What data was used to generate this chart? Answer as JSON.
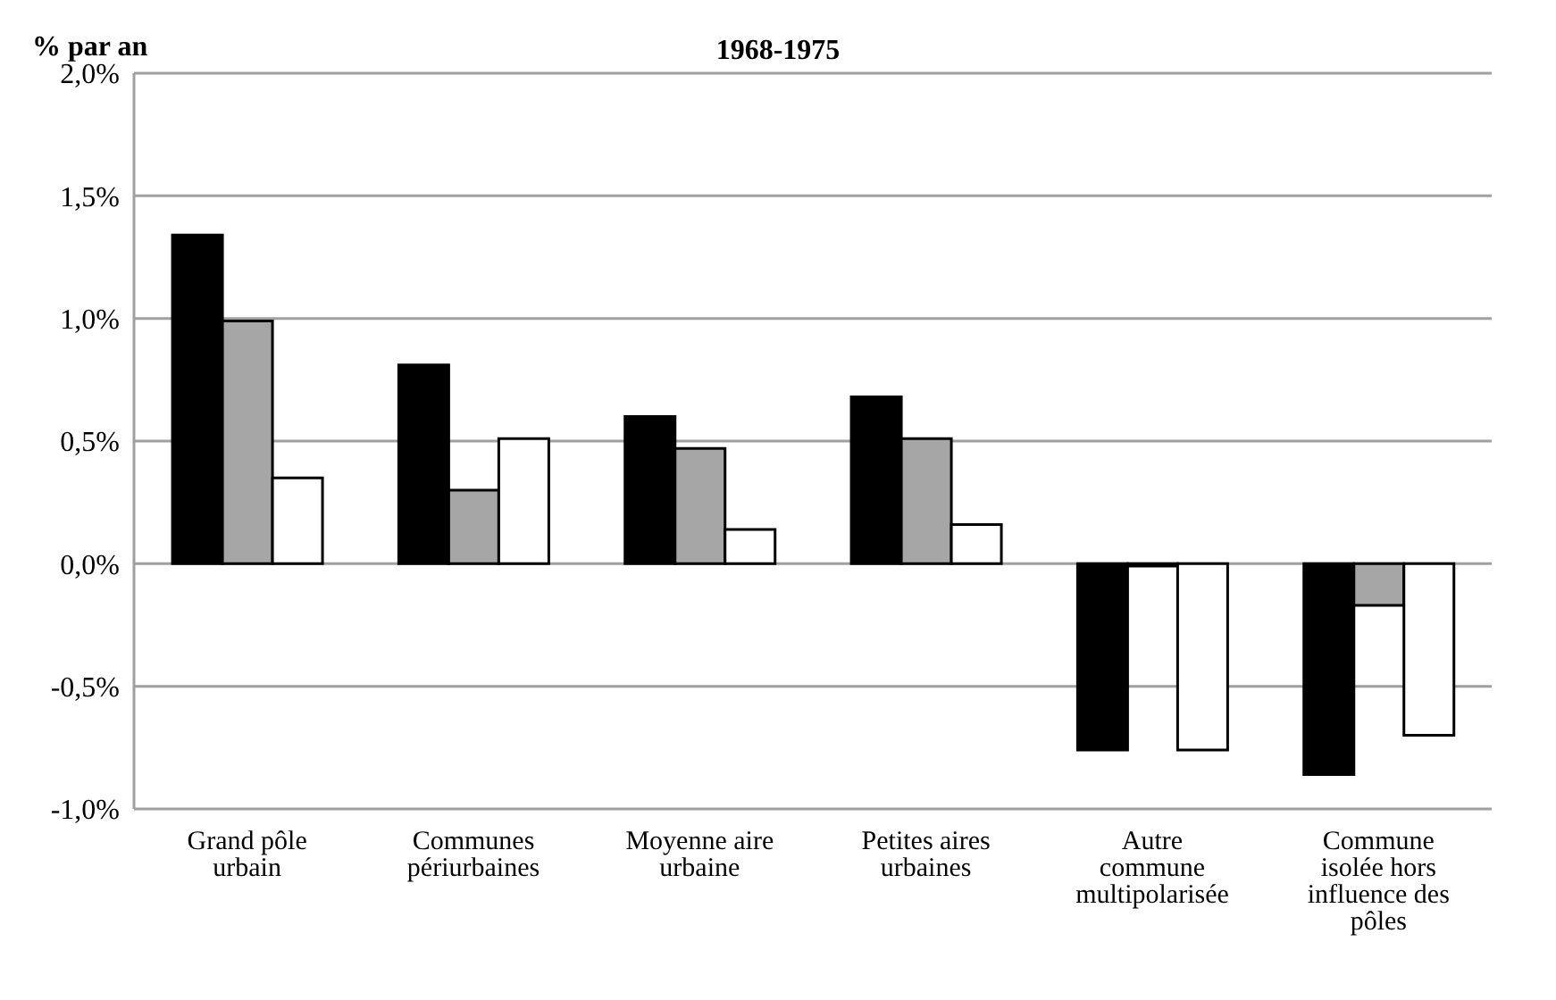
{
  "chart_data": {
    "type": "bar",
    "title": "1968-1975",
    "ylabel": "% par an",
    "categories": [
      "Grand pôle urbain",
      "Communes périurbaines",
      "Moyenne aire urbaine",
      "Petites aires urbaines",
      "Autre commune multipolarisée",
      "Commune isolée hors influence des pôles"
    ],
    "series": [
      {
        "color": "#000000",
        "values": [
          1.34,
          0.81,
          0.6,
          0.68,
          -0.76,
          -0.86
        ]
      },
      {
        "color": "#a6a6a6",
        "values": [
          0.99,
          0.3,
          0.47,
          0.51,
          -0.01,
          -0.17
        ]
      },
      {
        "color": "#ffffff",
        "values": [
          0.35,
          0.51,
          0.14,
          0.16,
          -0.76,
          -0.7
        ]
      }
    ],
    "ylim": [
      -1,
      2
    ],
    "yticks": [
      {
        "value": -1,
        "label": "-1,0%"
      },
      {
        "value": -0.5,
        "label": "-0,5%"
      },
      {
        "value": 0,
        "label": "0,0%"
      },
      {
        "value": 0.5,
        "label": "0,5%"
      },
      {
        "value": 1,
        "label": "1,0%"
      },
      {
        "value": 1.5,
        "label": "1,5%"
      },
      {
        "value": 2,
        "label": "2,0%"
      }
    ],
    "grid": "y",
    "legend": false
  }
}
